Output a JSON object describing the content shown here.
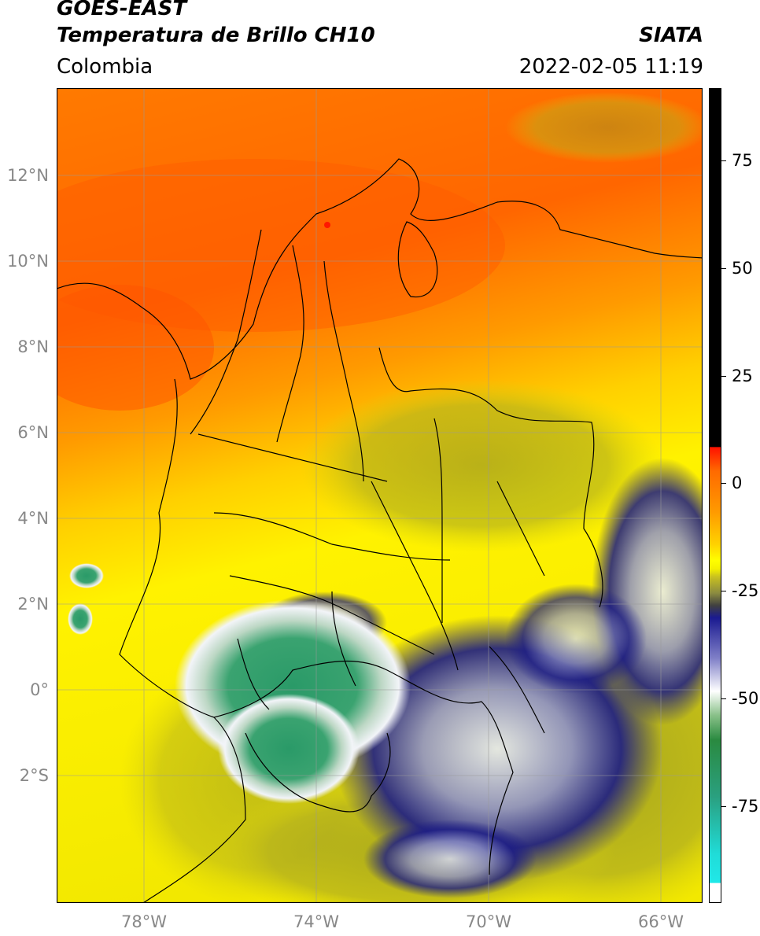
{
  "header": {
    "satellite": "GOES-EAST",
    "product": "Temperatura de Brillo CH10",
    "region": "Colombia",
    "agency": "SIATA",
    "datetime": "2022-02-05 11:19"
  },
  "map": {
    "lat_labels": [
      "12°N",
      "10°N",
      "8°N",
      "6°N",
      "4°N",
      "2°N",
      "0°",
      "2°S"
    ],
    "lon_labels": [
      "78°W",
      "74°W",
      "70°W",
      "66°W"
    ]
  },
  "colorbar": {
    "labels": [
      "75",
      "50",
      "25",
      "0",
      "-25",
      "-50",
      "-75"
    ]
  },
  "colors": {
    "warm_orange": "#ff6a00",
    "mid_orange": "#ff9a00",
    "yellow": "#ffef00",
    "olive": "#a0a020",
    "navy": "#1a1a80",
    "green": "#2aa06a",
    "cyan": "#20dcd8",
    "red": "#ff1800",
    "black": "#000000"
  }
}
